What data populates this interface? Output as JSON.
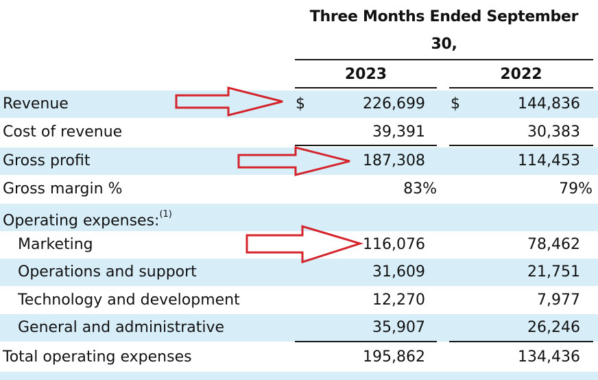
{
  "header": {
    "title_line1": "Three Months Ended September",
    "title_line2": "30,",
    "year1": "2023",
    "year2": "2022"
  },
  "currency_symbol": "$",
  "rows": [
    {
      "label": "Revenue",
      "v2023": "226,699",
      "v2022": "144,836"
    },
    {
      "label": "Cost of revenue",
      "v2023": "39,391",
      "v2022": "30,383"
    },
    {
      "label": "Gross profit",
      "v2023": "187,308",
      "v2022": "114,453"
    },
    {
      "label": "Gross margin %",
      "v2023": "83%",
      "v2022": "79%"
    },
    {
      "label": "Operating expenses:",
      "footnote": "(1)"
    },
    {
      "label": "Marketing",
      "v2023": "116,076",
      "v2022": "78,462"
    },
    {
      "label": "Operations and support",
      "v2023": "31,609",
      "v2022": "21,751"
    },
    {
      "label": "Technology and development",
      "v2023": "12,270",
      "v2022": "7,977"
    },
    {
      "label": "General and administrative",
      "v2023": "35,907",
      "v2022": "26,246"
    },
    {
      "label": "Total operating expenses",
      "v2023": "195,862",
      "v2022": "134,436"
    }
  ],
  "colors": {
    "row_shade": "#d7eef9",
    "arrow": "#d4232a"
  },
  "annotation_icons": [
    "red-arrow-icon",
    "red-arrow-icon",
    "red-arrow-icon"
  ]
}
